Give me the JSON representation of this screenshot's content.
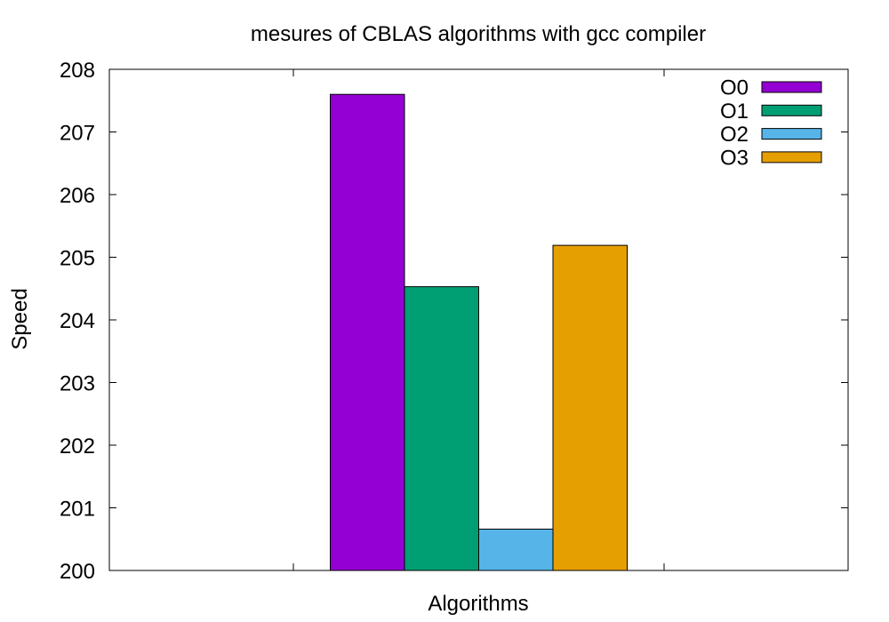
{
  "chart_data": {
    "type": "bar",
    "title": "mesures of CBLAS algorithms with gcc compiler",
    "xlabel": "Algorithms",
    "ylabel": "Speed",
    "ylim": [
      200,
      208
    ],
    "yticks": [
      "200",
      "201",
      "202",
      "203",
      "204",
      "205",
      "206",
      "207",
      "208"
    ],
    "grid": false,
    "legend_position": "top-right",
    "series": [
      {
        "name": "O0",
        "values": [
          207.6
        ],
        "color": "#9400d3"
      },
      {
        "name": "O1",
        "values": [
          204.53
        ],
        "color": "#009e73"
      },
      {
        "name": "O2",
        "values": [
          200.66
        ],
        "color": "#56b4e9"
      },
      {
        "name": "O3",
        "values": [
          205.19
        ],
        "color": "#e69f00"
      }
    ]
  }
}
